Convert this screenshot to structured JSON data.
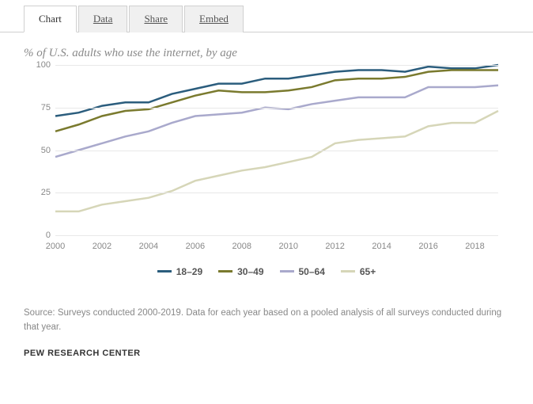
{
  "tabs": {
    "items": [
      "Chart",
      "Data",
      "Share",
      "Embed"
    ],
    "active_index": 0
  },
  "chart": {
    "type": "line",
    "title": "% of U.S. adults who use the internet, by age",
    "title_fontsize": 15,
    "title_color": "#8a8a8a",
    "title_style": "italic",
    "background_color": "#ffffff",
    "grid_color": "#e8e8e8",
    "axis_label_color": "#888888",
    "axis_label_fontsize": 11,
    "ylim": [
      0,
      100
    ],
    "yticks": [
      0,
      25,
      50,
      75,
      100
    ],
    "xlim": [
      2000,
      2019
    ],
    "xticks": [
      2000,
      2002,
      2004,
      2006,
      2008,
      2010,
      2012,
      2014,
      2016,
      2018
    ],
    "years": [
      2000,
      2001,
      2002,
      2003,
      2004,
      2005,
      2006,
      2007,
      2008,
      2009,
      2010,
      2011,
      2012,
      2013,
      2014,
      2015,
      2016,
      2017,
      2018,
      2019
    ],
    "line_width": 2.5,
    "series": [
      {
        "name": "18–29",
        "color": "#2b5d7d",
        "values": [
          70,
          72,
          76,
          78,
          78,
          83,
          86,
          89,
          89,
          92,
          92,
          94,
          96,
          97,
          97,
          96,
          99,
          98,
          98,
          100
        ]
      },
      {
        "name": "30–49",
        "color": "#7a7a2e",
        "values": [
          61,
          65,
          70,
          73,
          74,
          78,
          82,
          85,
          84,
          84,
          85,
          87,
          91,
          92,
          92,
          93,
          96,
          97,
          97,
          97
        ]
      },
      {
        "name": "50–64",
        "color": "#a9a9cc",
        "values": [
          46,
          50,
          54,
          58,
          61,
          66,
          70,
          71,
          72,
          75,
          74,
          77,
          79,
          81,
          81,
          81,
          87,
          87,
          87,
          88
        ]
      },
      {
        "name": "65+",
        "color": "#d6d6b8",
        "values": [
          14,
          14,
          18,
          20,
          22,
          26,
          32,
          35,
          38,
          40,
          43,
          46,
          54,
          56,
          57,
          58,
          64,
          66,
          66,
          73
        ]
      }
    ]
  },
  "footer": {
    "source": "Source: Surveys conducted 2000-2019. Data for each year based on a pooled analysis of all surveys conducted during that year.",
    "brand": "PEW RESEARCH CENTER"
  }
}
